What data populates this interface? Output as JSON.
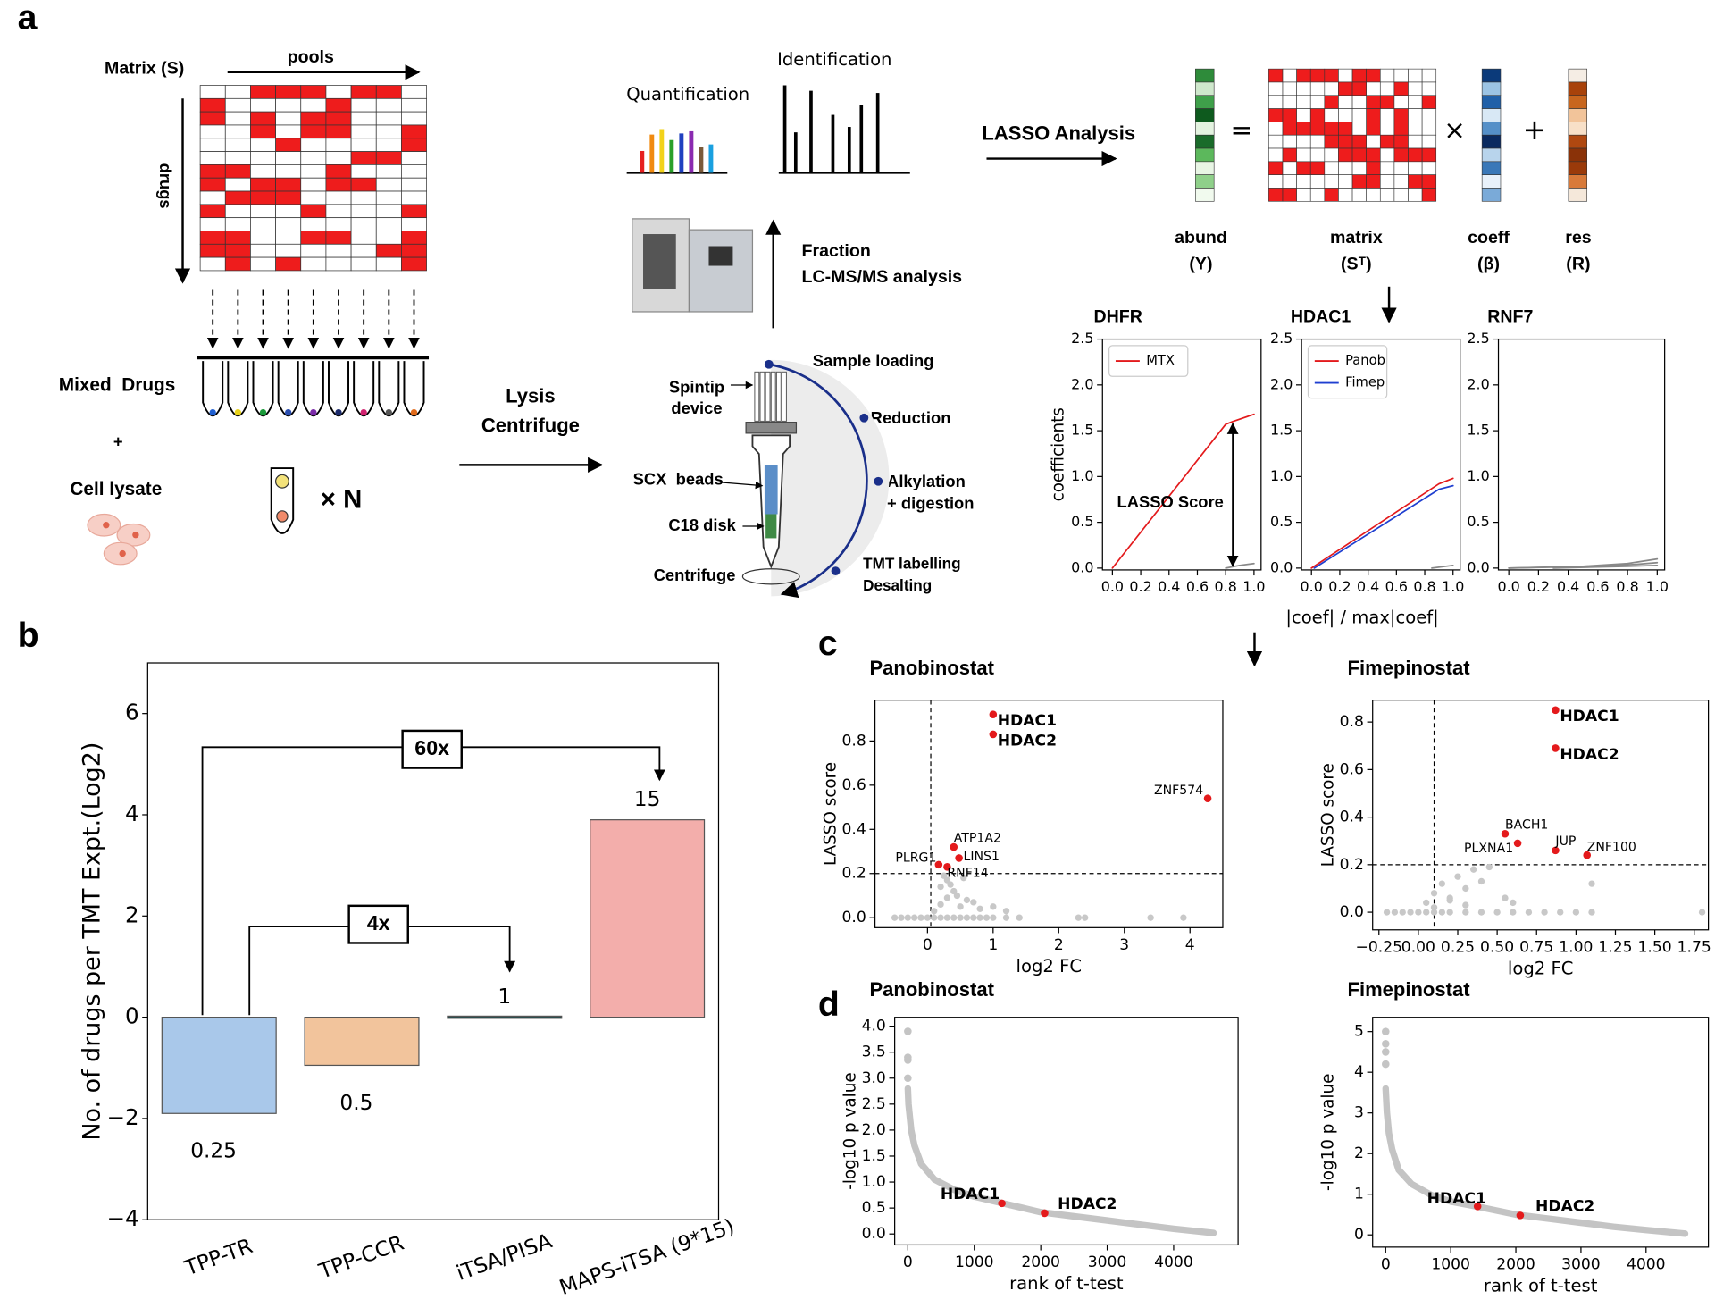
{
  "diagram": {
    "panel_labels": [
      "a",
      "b",
      "c",
      "d"
    ],
    "matrix_title": "Matrix (S)",
    "pools": "pools",
    "drugs": "drugs",
    "mixed_drugs": "Mixed  Drugs",
    "plus": "+",
    "cell_lysate": "Cell lysate",
    "times_n": "× N",
    "lysis": "Lysis",
    "centrifuge_step": "Centrifuge",
    "quantification": "Quantification",
    "identification": "Identification",
    "fraction": "Fraction",
    "lcms": "LC-MS/MS analysis",
    "spintip": "Spintip",
    "device": "device",
    "scx": "SCX  beads",
    "c18": "C18 disk",
    "centrifuge": "Centrifuge",
    "steps": [
      "Sample loading",
      "Reduction",
      "Alkylation",
      "+ digestion",
      "TMT labelling",
      "Desalting"
    ],
    "lasso": "LASSO Analysis",
    "equation": [
      "=",
      "×",
      "+"
    ],
    "vectors": [
      {
        "name": "abund",
        "symbol": "(Y)"
      },
      {
        "name": "matrix",
        "symbol": "(Sᵀ)"
      },
      {
        "name": "coeff",
        "symbol": "(β)"
      },
      {
        "name": "res",
        "symbol": "(R)"
      }
    ]
  },
  "chart_data": [
    {
      "type": "bar",
      "ylabel": "No. of drugs per TMT Expt.(Log2)",
      "categories": [
        "TPP-TR",
        "TPP-CCR",
        "iTSA/PISA",
        "MAPS-iTSA (9*15)"
      ],
      "values": [
        -1.9,
        -0.95,
        0,
        3.9
      ],
      "colors": [
        "#a9c8ea",
        "#f2c49c",
        "#2f4f4f",
        "#f3aeab"
      ],
      "bar_annotations": [
        "0.25",
        "0.5",
        "1",
        "15"
      ],
      "brackets": [
        {
          "label": "60x"
        },
        {
          "label": "4x"
        }
      ],
      "ylim": [
        -4,
        7
      ],
      "yticks": [
        {
          "value": -4,
          "label": "−4"
        },
        {
          "value": -2,
          "label": "−2"
        },
        0,
        2,
        4,
        6
      ]
    },
    {
      "type": "line",
      "title": "DHFR",
      "ylabel": "coefficients",
      "annotation": "LASSO Score",
      "legend": "upper left",
      "xlim": [
        -0.07,
        1.05
      ],
      "ylim": [
        -0.02,
        2.5
      ],
      "xticks": [
        {
          "value": 0,
          "label": "0.0"
        },
        {
          "value": 0.2,
          "label": "0.2"
        },
        {
          "value": 0.4,
          "label": "0.4"
        },
        {
          "value": 0.6,
          "label": "0.6"
        },
        {
          "value": 0.8,
          "label": "0.8"
        },
        {
          "value": 1,
          "label": "1.0"
        }
      ],
      "yticks": [
        {
          "value": 0,
          "label": "0.0"
        },
        {
          "value": 0.5,
          "label": "0.5"
        },
        {
          "value": 1,
          "label": "1.0"
        },
        {
          "value": 1.5,
          "label": "1.5"
        },
        {
          "value": 2,
          "label": "2.0"
        },
        {
          "value": 2.5,
          "label": "2.5"
        }
      ],
      "series": [
        {
          "name": "MTX",
          "color": "#e31a1c",
          "x": [
            0,
            0.8,
            0.85,
            1.0
          ],
          "values": [
            0,
            1.57,
            1.6,
            1.68
          ]
        },
        {
          "color": "#888888",
          "x": [
            0.8,
            0.9,
            1.0
          ],
          "values": [
            0,
            0.03,
            0.05
          ]
        }
      ]
    },
    {
      "type": "line",
      "title": "HDAC1",
      "xlabel": "|coef| / max|coef|",
      "legend": "upper left",
      "xlim": [
        -0.07,
        1.05
      ],
      "ylim": [
        -0.02,
        2.5
      ],
      "xticks": [
        {
          "value": 0,
          "label": "0.0"
        },
        {
          "value": 0.2,
          "label": "0.2"
        },
        {
          "value": 0.4,
          "label": "0.4"
        },
        {
          "value": 0.6,
          "label": "0.6"
        },
        {
          "value": 0.8,
          "label": "0.8"
        },
        {
          "value": 1,
          "label": "1.0"
        }
      ],
      "yticks": [
        {
          "value": 0,
          "label": "0.0"
        },
        {
          "value": 0.5,
          "label": "0.5"
        },
        {
          "value": 1,
          "label": "1.0"
        },
        {
          "value": 1.5,
          "label": "1.5"
        },
        {
          "value": 2,
          "label": "2.0"
        },
        {
          "value": 2.5,
          "label": "2.5"
        }
      ],
      "series": [
        {
          "name": "Panob",
          "color": "#e31a1c",
          "x": [
            0,
            0.9,
            1.0
          ],
          "values": [
            0,
            0.92,
            0.98
          ]
        },
        {
          "name": "Fimep",
          "color": "#1f3fd0",
          "x": [
            0.02,
            0.9,
            1.0
          ],
          "values": [
            0,
            0.86,
            0.9
          ]
        },
        {
          "color": "#888888",
          "x": [
            0.85,
            1.0
          ],
          "values": [
            0,
            0.03
          ]
        }
      ]
    },
    {
      "type": "line",
      "title": "RNF7",
      "xlim": [
        -0.07,
        1.05
      ],
      "ylim": [
        -0.02,
        2.5
      ],
      "xticks": [
        {
          "value": 0,
          "label": "0.0"
        },
        {
          "value": 0.2,
          "label": "0.2"
        },
        {
          "value": 0.4,
          "label": "0.4"
        },
        {
          "value": 0.6,
          "label": "0.6"
        },
        {
          "value": 0.8,
          "label": "0.8"
        },
        {
          "value": 1,
          "label": "1.0"
        }
      ],
      "yticks": [
        {
          "value": 0,
          "label": "0.0"
        },
        {
          "value": 0.5,
          "label": "0.5"
        },
        {
          "value": 1,
          "label": "1.0"
        },
        {
          "value": 1.5,
          "label": "1.5"
        },
        {
          "value": 2,
          "label": "2.0"
        },
        {
          "value": 2.5,
          "label": "2.5"
        }
      ],
      "series": [
        {
          "color": "#888888",
          "x": [
            0,
            0.5,
            0.8,
            1.0
          ],
          "values": [
            0,
            0.02,
            0.05,
            0.1
          ]
        },
        {
          "color": "#888888",
          "x": [
            0,
            0.6,
            0.85,
            1.0
          ],
          "values": [
            0,
            0.02,
            0.04,
            0.06
          ]
        },
        {
          "color": "#888888",
          "x": [
            0.3,
            0.8,
            1.0
          ],
          "values": [
            0,
            0.02,
            0.03
          ]
        }
      ]
    },
    {
      "type": "scatter",
      "title": "Panobinostat",
      "xlabel": "log2 FC",
      "ylabel": "LASSO score",
      "xlim": [
        -0.8,
        4.5
      ],
      "ylim": [
        -0.045,
        0.985
      ],
      "xticks": [
        0,
        1,
        2,
        3,
        4
      ],
      "yticks": [
        {
          "value": 0,
          "label": "0.0"
        },
        {
          "value": 0.2,
          "label": "0.2"
        },
        {
          "value": 0.4,
          "label": "0.4"
        },
        {
          "value": 0.6,
          "label": "0.6"
        },
        {
          "value": 0.8,
          "label": "0.8"
        }
      ],
      "thresholds": {
        "x": 0.05,
        "y": 0.2
      },
      "series": [
        {
          "color": "#c8c8c8",
          "x": [
            -0.5,
            -0.4,
            -0.3,
            -0.2,
            -0.1,
            0,
            0.1,
            0.2,
            0.3,
            0.4,
            0.5,
            0.6,
            0.7,
            0.8,
            0.9,
            1.0,
            1.2,
            1.4,
            2.3,
            2.4,
            3.4,
            3.9,
            0.1,
            0.2,
            0.3,
            0.4,
            0.5,
            0.6,
            0.8,
            0.2,
            0.3,
            0.45,
            0.7,
            1.0,
            1.2,
            0.25,
            0.35,
            0.55
          ],
          "values": [
            0,
            0,
            0,
            0,
            0,
            0,
            0,
            0,
            0,
            0,
            0,
            0,
            0,
            0,
            0,
            0,
            0,
            0,
            0,
            0,
            0,
            0,
            0.03,
            0.06,
            0.09,
            0.12,
            0.05,
            0.08,
            0.04,
            0.14,
            0.17,
            0.1,
            0.07,
            0.05,
            0.03,
            0.19,
            0.15,
            0.18
          ]
        },
        {
          "color": "#e41a1c",
          "label_color": "#e41a1c",
          "x": [
            1.0,
            1.0
          ],
          "values": [
            0.92,
            0.83
          ],
          "labels": [
            "HDAC1",
            "HDAC2"
          ]
        },
        {
          "color": "#e41a1c",
          "label_color": "#000000",
          "x": [
            4.27,
            0.4,
            0.48,
            0.17,
            0.3
          ],
          "values": [
            0.54,
            0.32,
            0.27,
            0.24,
            0.23
          ],
          "labels": [
            "ZNF574",
            "ATP1A2",
            "LINS1",
            "PLRG1",
            "RNF14"
          ]
        }
      ]
    },
    {
      "type": "scatter",
      "title": "Fimepinostat",
      "xlabel": "log2 FC",
      "ylabel": "LASSO score",
      "xlim": [
        -0.29,
        1.84
      ],
      "ylim": [
        -0.074,
        0.892
      ],
      "xticks": [
        {
          "value": -0.25,
          "label": "−0.25"
        },
        {
          "value": 0,
          "label": "0.00"
        },
        {
          "value": 0.25,
          "label": "0.25"
        },
        {
          "value": 0.5,
          "label": "0.50"
        },
        {
          "value": 0.75,
          "label": "0.75"
        },
        {
          "value": 1,
          "label": "1.00"
        },
        {
          "value": 1.25,
          "label": "1.25"
        },
        {
          "value": 1.5,
          "label": "1.50"
        },
        {
          "value": 1.75,
          "label": "1.75"
        }
      ],
      "yticks": [
        {
          "value": 0,
          "label": "0.0"
        },
        {
          "value": 0.2,
          "label": "0.2"
        },
        {
          "value": 0.4,
          "label": "0.4"
        },
        {
          "value": 0.6,
          "label": "0.6"
        },
        {
          "value": 0.8,
          "label": "0.8"
        }
      ],
      "thresholds": {
        "x": 0.1,
        "y": 0.2
      },
      "series": [
        {
          "color": "#c8c8c8",
          "x": [
            -0.2,
            -0.15,
            -0.1,
            -0.05,
            0,
            0.05,
            0.1,
            0.15,
            0.2,
            0.3,
            0.4,
            0.5,
            0.6,
            0.7,
            0.8,
            0.9,
            1.0,
            1.1,
            1.8,
            0.05,
            0.1,
            0.15,
            0.2,
            0.25,
            0.3,
            0.35,
            0.4,
            0.45,
            0.55,
            0.1,
            0.2,
            0.3,
            1.1,
            0.6
          ],
          "values": [
            0,
            0,
            0,
            0,
            0,
            0,
            0,
            0,
            0,
            0,
            0,
            0,
            0,
            0,
            0,
            0,
            0,
            0,
            0,
            0.04,
            0.08,
            0.12,
            0.06,
            0.15,
            0.1,
            0.18,
            0.13,
            0.19,
            0.06,
            0.02,
            0.05,
            0.03,
            0.12,
            0.04
          ]
        },
        {
          "color": "#e41a1c",
          "label_color": "#e41a1c",
          "x": [
            0.87,
            0.87
          ],
          "values": [
            0.85,
            0.69
          ],
          "labels": [
            "HDAC1",
            "HDAC2"
          ]
        },
        {
          "color": "#e41a1c",
          "label_color": "#000000",
          "x": [
            0.55,
            0.63,
            0.87,
            1.07
          ],
          "values": [
            0.33,
            0.29,
            0.26,
            0.24
          ],
          "labels": [
            "BACH1",
            "PLXNA1",
            "JUP",
            "ZNF100"
          ]
        }
      ]
    },
    {
      "type": "line",
      "title": "Panobinostat",
      "xlabel": "rank of t-test",
      "ylabel": "-log10 p value",
      "xlim": [
        -198,
        4970
      ],
      "ylim": [
        -0.21,
        4.17
      ],
      "xticks": [
        0,
        1000,
        2000,
        3000,
        4000
      ],
      "yticks": [
        {
          "value": 0,
          "label": "0.0"
        },
        {
          "value": 0.5,
          "label": "0.5"
        },
        {
          "value": 1,
          "label": "1.0"
        },
        {
          "value": 1.5,
          "label": "1.5"
        },
        {
          "value": 2,
          "label": "2.0"
        },
        {
          "value": 2.5,
          "label": "2.5"
        },
        {
          "value": 3,
          "label": "3.0"
        },
        {
          "value": 3.5,
          "label": "3.5"
        },
        {
          "value": 4,
          "label": "4.0"
        }
      ],
      "series": [
        {
          "color": "#c4c4c4",
          "x": [
            0,
            10,
            50,
            100,
            200,
            400,
            700,
            1000,
            1400,
            2000,
            2500,
            3000,
            3500,
            4000,
            4600
          ],
          "values": [
            2.8,
            2.5,
            2.0,
            1.7,
            1.35,
            1.05,
            0.85,
            0.72,
            0.6,
            0.42,
            0.34,
            0.26,
            0.18,
            0.1,
            0.02
          ]
        },
        {
          "color": "#c4c4c4",
          "markers": true,
          "x": [
            0,
            0,
            0,
            0
          ],
          "values": [
            3.9,
            3.4,
            3.35,
            3.0
          ]
        },
        {
          "color": "#e41a1c",
          "label_color": "#e41a1c",
          "markers": true,
          "x": [
            1415,
            2058
          ],
          "values": [
            0.59,
            0.4
          ],
          "labels": [
            "HDAC1",
            "HDAC2"
          ]
        }
      ]
    },
    {
      "type": "line",
      "title": "Fimepinostat",
      "xlabel": "rank of t-test",
      "ylabel": "-log10 p value",
      "xlim": [
        -200,
        4958
      ],
      "ylim": [
        -0.3,
        5.35
      ],
      "xticks": [
        0,
        1000,
        2000,
        3000,
        4000
      ],
      "yticks": [
        0,
        1,
        2,
        3,
        4,
        5
      ],
      "series": [
        {
          "color": "#c4c4c4",
          "x": [
            0,
            20,
            50,
            100,
            200,
            400,
            700,
            1000,
            1400,
            2000,
            2500,
            3000,
            3500,
            4000,
            4600
          ],
          "values": [
            3.6,
            3.0,
            2.5,
            2.1,
            1.6,
            1.25,
            0.98,
            0.82,
            0.7,
            0.5,
            0.4,
            0.3,
            0.2,
            0.12,
            0.03
          ]
        },
        {
          "color": "#c4c4c4",
          "markers": true,
          "x": [
            0,
            0,
            0,
            0
          ],
          "values": [
            5.0,
            4.7,
            4.5,
            4.2
          ]
        },
        {
          "color": "#e41a1c",
          "label_color": "#e41a1c",
          "markers": true,
          "x": [
            1412,
            2067
          ],
          "values": [
            0.7,
            0.48
          ],
          "labels": [
            "HDAC1",
            "HDAC2"
          ]
        }
      ]
    }
  ]
}
